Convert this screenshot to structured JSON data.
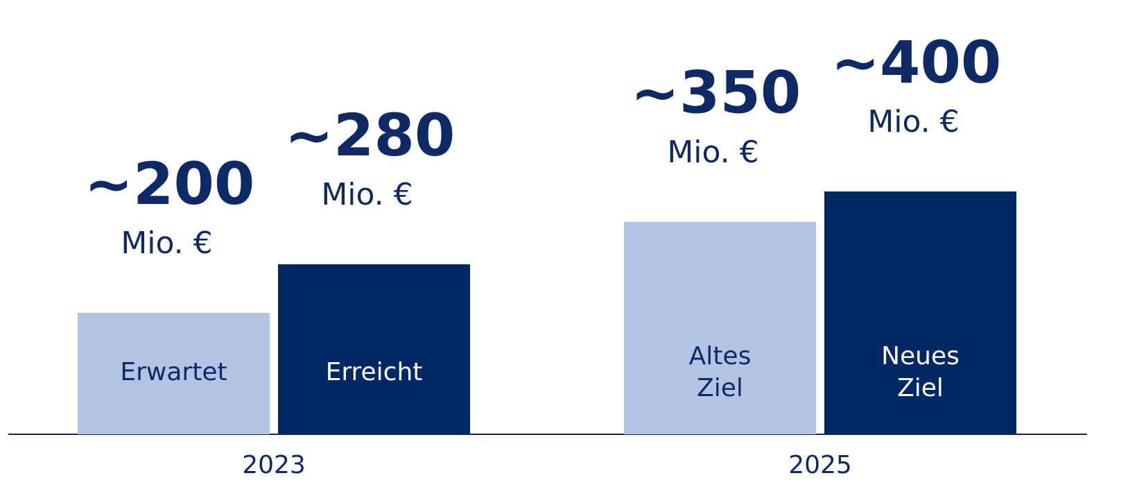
{
  "chart_data": {
    "type": "bar",
    "ylim": [
      0,
      400
    ],
    "unit": "Mio. €",
    "groups": [
      {
        "name": "2023",
        "bars": [
          {
            "label": [
              "Erwartet"
            ],
            "value": 200,
            "value_label": "~200",
            "color": "#b3c3e4",
            "text_color": "#0d2a66"
          },
          {
            "label": [
              "Erreicht"
            ],
            "value": 280,
            "value_label": "~280",
            "color": "#002865",
            "text_color": "#ffffff"
          }
        ]
      },
      {
        "name": "2025",
        "bars": [
          {
            "label": [
              "Altes",
              "Ziel"
            ],
            "value": 350,
            "value_label": "~350",
            "color": "#b3c3e4",
            "text_color": "#0d2a66"
          },
          {
            "label": [
              "Neues",
              "Ziel"
            ],
            "value": 400,
            "value_label": "~400",
            "color": "#002865",
            "text_color": "#ffffff"
          }
        ]
      }
    ]
  }
}
